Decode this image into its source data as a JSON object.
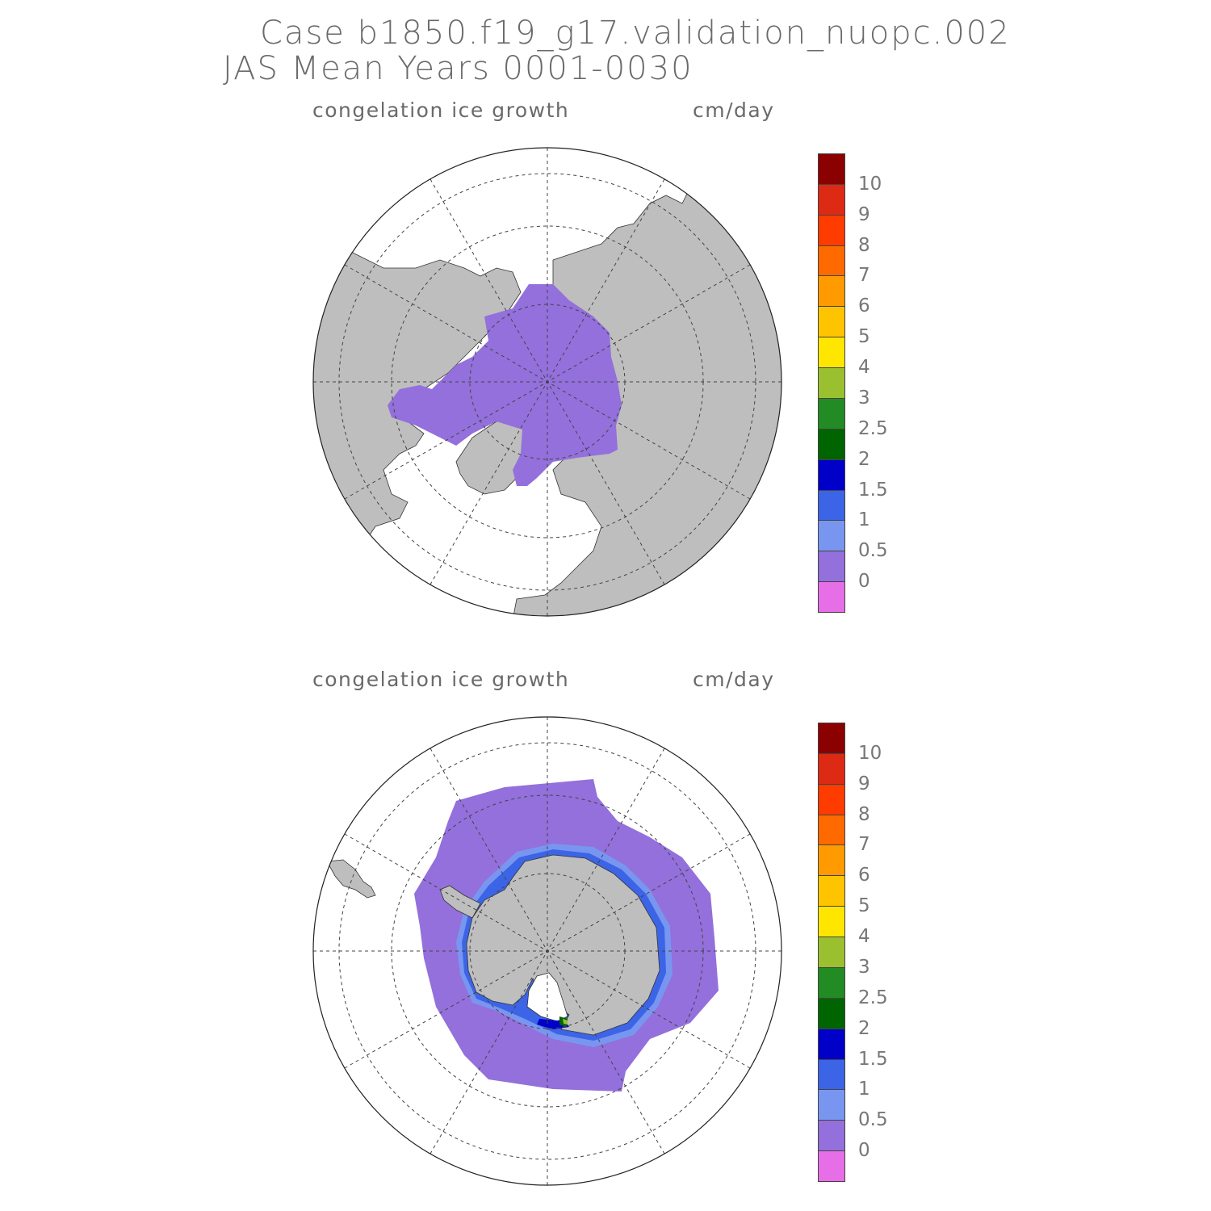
{
  "title": {
    "line1": "Case b1850.f19_g17.validation_nuopc.002",
    "line2": "JAS Mean    Years 0001-0030"
  },
  "panels": [
    {
      "id": "north",
      "variable": "congelation ice growth",
      "units": "cm/day"
    },
    {
      "id": "south",
      "variable": "congelation ice growth",
      "units": "cm/day"
    }
  ],
  "colorbar": {
    "colors": [
      "#8b0000",
      "#dc2a14",
      "#ff3c00",
      "#ff6a00",
      "#ff9a00",
      "#ffc400",
      "#ffe600",
      "#9ac030",
      "#238b23",
      "#006400",
      "#0000c8",
      "#3c64e6",
      "#7896f0",
      "#9370db",
      "#e66ee6"
    ],
    "labels": [
      "10",
      "9",
      "8",
      "7",
      "6",
      "5",
      "4",
      "3",
      "2.5",
      "2",
      "1.5",
      "1",
      "0.5",
      "0"
    ]
  },
  "map_colors": {
    "land": "#bebebe",
    "ocean": "#ffffff",
    "ice_low": "#9370db",
    "ice_light_blue": "#7896f0",
    "ice_blue": "#3c64e6",
    "ice_dark_blue": "#0000c8",
    "ice_green": "#006400",
    "ice_yellowgreen": "#9ac030"
  }
}
